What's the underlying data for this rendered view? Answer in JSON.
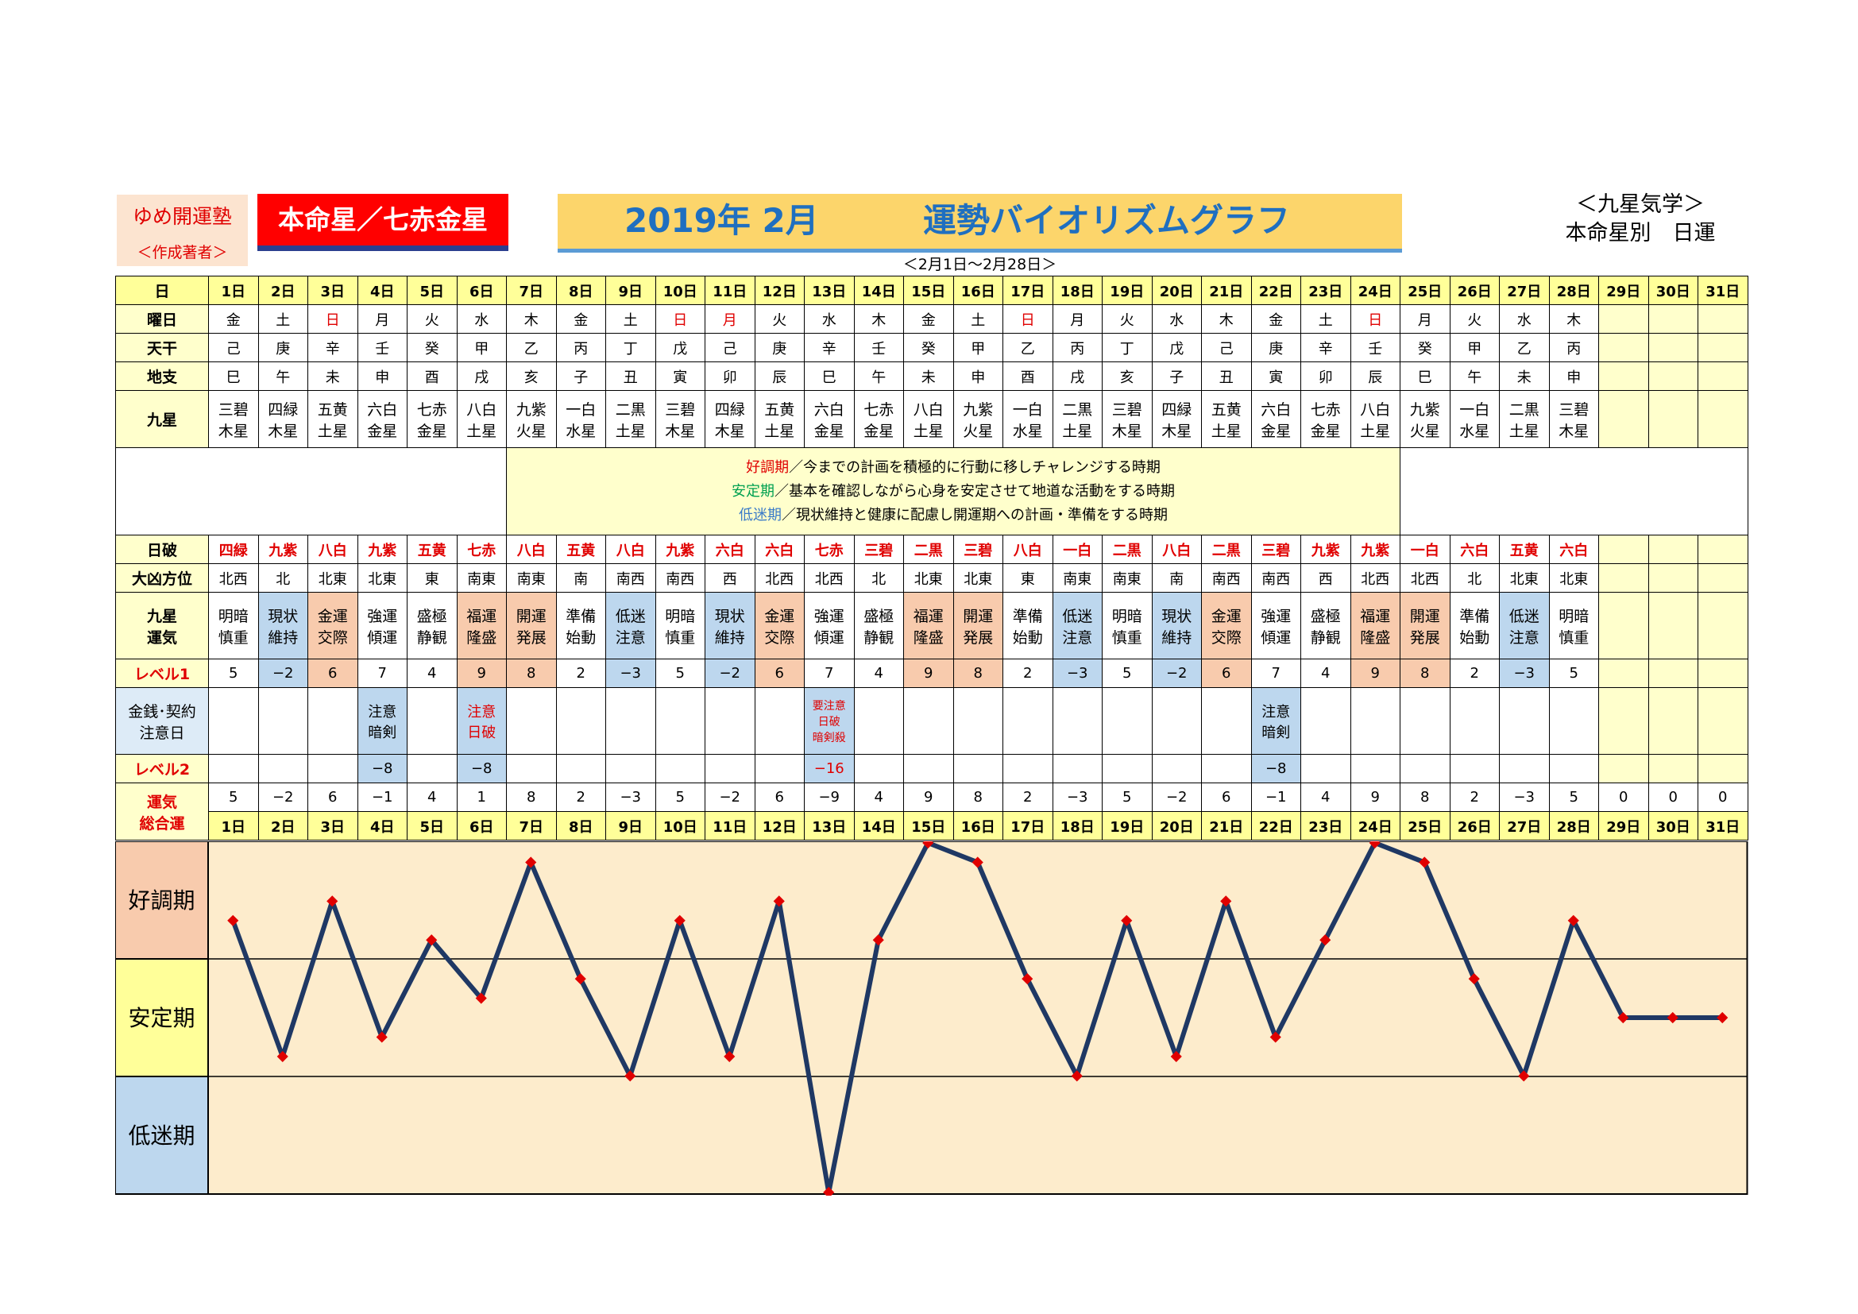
{
  "header": {
    "school": "ゆめ開運塾",
    "author_note": "＜作成著者＞",
    "honmei": "本命星／七赤金星",
    "year_month": "2019年 2月",
    "title": "運勢バイオリズムグラフ",
    "range": "＜2月1日～2月28日＞",
    "right_top": "＜九星気学＞",
    "right_bottom": "本命星別　日運"
  },
  "labels": {
    "day": "日",
    "weekday": "曜日",
    "kan": "天干",
    "shi": "地支",
    "star": "九星",
    "hakai": "日破",
    "kyo": "大凶方位",
    "unki_1": "九星",
    "unki_2": "運気",
    "level1": "レベル1",
    "money_1": "金銭･契約",
    "money_2": "注意日",
    "level2": "レベル2",
    "total_1": "運気",
    "total_2": "総合運"
  },
  "legend": {
    "good": "好調期",
    "good_text": "／今までの計画を積極的に行動に移しチャレンジする時期",
    "stable": "安定期",
    "stable_text": "／基本を確認しながら心身を安定させて地道な活動をする時期",
    "low": "低迷期",
    "low_text": "／現状維持と健康に配慮し開運期への計画・準備をする時期"
  },
  "colors": {
    "line": "#1f3864",
    "marker": "#e00000",
    "plot_bg": "#fdeccc",
    "good": "#f8cbad",
    "stable": "#ffff99",
    "low": "#bdd7ee"
  },
  "days": [
    "1日",
    "2日",
    "3日",
    "4日",
    "5日",
    "6日",
    "7日",
    "8日",
    "9日",
    "10日",
    "11日",
    "12日",
    "13日",
    "14日",
    "15日",
    "16日",
    "17日",
    "18日",
    "19日",
    "20日",
    "21日",
    "22日",
    "23日",
    "24日",
    "25日",
    "26日",
    "27日",
    "28日",
    "29日",
    "30日",
    "31日"
  ],
  "weekdays": [
    "金",
    "土",
    "日",
    "月",
    "火",
    "水",
    "木",
    "金",
    "土",
    "日",
    "月",
    "火",
    "水",
    "木",
    "金",
    "土",
    "日",
    "月",
    "火",
    "水",
    "木",
    "金",
    "土",
    "日",
    "月",
    "火",
    "水",
    "木",
    "",
    "",
    ""
  ],
  "weekday_red": [
    false,
    false,
    true,
    false,
    false,
    false,
    false,
    false,
    false,
    true,
    true,
    false,
    false,
    false,
    false,
    false,
    true,
    false,
    false,
    false,
    false,
    false,
    false,
    true,
    false,
    false,
    false,
    false,
    false,
    false,
    false
  ],
  "kan": [
    "己",
    "庚",
    "辛",
    "壬",
    "癸",
    "甲",
    "乙",
    "丙",
    "丁",
    "戊",
    "己",
    "庚",
    "辛",
    "壬",
    "癸",
    "甲",
    "乙",
    "丙",
    "丁",
    "戊",
    "己",
    "庚",
    "辛",
    "壬",
    "癸",
    "甲",
    "乙",
    "丙",
    "",
    "",
    ""
  ],
  "shi": [
    "巳",
    "午",
    "未",
    "申",
    "酉",
    "戌",
    "亥",
    "子",
    "丑",
    "寅",
    "卯",
    "辰",
    "巳",
    "午",
    "未",
    "申",
    "酉",
    "戌",
    "亥",
    "子",
    "丑",
    "寅",
    "卯",
    "辰",
    "巳",
    "午",
    "未",
    "申",
    "",
    "",
    ""
  ],
  "stars": [
    [
      "三碧",
      "木星"
    ],
    [
      "四緑",
      "木星"
    ],
    [
      "五黄",
      "土星"
    ],
    [
      "六白",
      "金星"
    ],
    [
      "七赤",
      "金星"
    ],
    [
      "八白",
      "土星"
    ],
    [
      "九紫",
      "火星"
    ],
    [
      "一白",
      "水星"
    ],
    [
      "二黒",
      "土星"
    ],
    [
      "三碧",
      "木星"
    ],
    [
      "四緑",
      "木星"
    ],
    [
      "五黄",
      "土星"
    ],
    [
      "六白",
      "金星"
    ],
    [
      "七赤",
      "金星"
    ],
    [
      "八白",
      "土星"
    ],
    [
      "九紫",
      "火星"
    ],
    [
      "一白",
      "水星"
    ],
    [
      "二黒",
      "土星"
    ],
    [
      "三碧",
      "木星"
    ],
    [
      "四緑",
      "木星"
    ],
    [
      "五黄",
      "土星"
    ],
    [
      "六白",
      "金星"
    ],
    [
      "七赤",
      "金星"
    ],
    [
      "八白",
      "土星"
    ],
    [
      "九紫",
      "火星"
    ],
    [
      "一白",
      "水星"
    ],
    [
      "二黒",
      "土星"
    ],
    [
      "三碧",
      "木星"
    ],
    [
      "",
      ""
    ],
    [
      "",
      ""
    ],
    [
      "",
      ""
    ]
  ],
  "hakai": [
    "四緑",
    "九紫",
    "八白",
    "九紫",
    "五黄",
    "七赤",
    "八白",
    "五黄",
    "八白",
    "九紫",
    "六白",
    "六白",
    "七赤",
    "三碧",
    "二黒",
    "三碧",
    "八白",
    "一白",
    "二黒",
    "八白",
    "二黒",
    "三碧",
    "九紫",
    "九紫",
    "一白",
    "六白",
    "五黄",
    "六白",
    "",
    "",
    ""
  ],
  "kyo": [
    "北西",
    "北",
    "北東",
    "北東",
    "東",
    "南東",
    "南東",
    "南",
    "南西",
    "南西",
    "西",
    "北西",
    "北西",
    "北",
    "北東",
    "北東",
    "東",
    "南東",
    "南東",
    "南",
    "南西",
    "南西",
    "西",
    "北西",
    "北西",
    "北",
    "北東",
    "北東",
    "",
    "",
    ""
  ],
  "unki": [
    [
      "明暗",
      "慎重"
    ],
    [
      "現状",
      "維持"
    ],
    [
      "金運",
      "交際"
    ],
    [
      "強運",
      "傾運"
    ],
    [
      "盛極",
      "静観"
    ],
    [
      "福運",
      "隆盛"
    ],
    [
      "開運",
      "発展"
    ],
    [
      "準備",
      "始動"
    ],
    [
      "低迷",
      "注意"
    ],
    [
      "明暗",
      "慎重"
    ],
    [
      "現状",
      "維持"
    ],
    [
      "金運",
      "交際"
    ],
    [
      "強運",
      "傾運"
    ],
    [
      "盛極",
      "静観"
    ],
    [
      "福運",
      "隆盛"
    ],
    [
      "開運",
      "発展"
    ],
    [
      "準備",
      "始動"
    ],
    [
      "低迷",
      "注意"
    ],
    [
      "明暗",
      "慎重"
    ],
    [
      "現状",
      "維持"
    ],
    [
      "金運",
      "交際"
    ],
    [
      "強運",
      "傾運"
    ],
    [
      "盛極",
      "静観"
    ],
    [
      "福運",
      "隆盛"
    ],
    [
      "開運",
      "発展"
    ],
    [
      "準備",
      "始動"
    ],
    [
      "低迷",
      "注意"
    ],
    [
      "明暗",
      "慎重"
    ],
    [
      "",
      ""
    ],
    [
      "",
      ""
    ],
    [
      "",
      ""
    ]
  ],
  "level1": [
    "5",
    "−2",
    "6",
    "7",
    "4",
    "9",
    "8",
    "2",
    "−3",
    "5",
    "−2",
    "6",
    "7",
    "4",
    "9",
    "8",
    "2",
    "−3",
    "5",
    "−2",
    "6",
    "7",
    "4",
    "9",
    "8",
    "2",
    "−3",
    "5",
    "",
    "",
    ""
  ],
  "money": [
    "",
    "",
    "",
    [
      "注意",
      "暗剣"
    ],
    "",
    [
      "注意",
      "日破"
    ],
    "",
    "",
    "",
    "",
    "",
    "",
    [
      "要注意",
      "日破",
      "暗剣殺"
    ],
    "",
    "",
    "",
    "",
    "",
    "",
    "",
    "",
    [
      "注意",
      "暗剣"
    ],
    "",
    "",
    "",
    "",
    "",
    "",
    "",
    "",
    ""
  ],
  "level2": [
    "",
    "",
    "",
    "−8",
    "",
    "−8",
    "",
    "",
    "",
    "",
    "",
    "",
    "−16",
    "",
    "",
    "",
    "",
    "",
    "",
    "",
    "",
    "−8",
    "",
    "",
    "",
    "",
    "",
    "",
    "",
    "",
    ""
  ],
  "total": [
    "5",
    "−2",
    "6",
    "−1",
    "4",
    "1",
    "8",
    "2",
    "−3",
    "5",
    "−2",
    "6",
    "−9",
    "4",
    "9",
    "8",
    "2",
    "−3",
    "5",
    "−2",
    "6",
    "−1",
    "4",
    "9",
    "8",
    "2",
    "−3",
    "5",
    "0",
    "0",
    "0"
  ],
  "chart_data": {
    "type": "line",
    "x": [
      "1日",
      "2日",
      "3日",
      "4日",
      "5日",
      "6日",
      "7日",
      "8日",
      "9日",
      "10日",
      "11日",
      "12日",
      "13日",
      "14日",
      "15日",
      "16日",
      "17日",
      "18日",
      "19日",
      "20日",
      "21日",
      "22日",
      "23日",
      "24日",
      "25日",
      "26日",
      "27日",
      "28日",
      "29日",
      "30日",
      "31日"
    ],
    "values": [
      5,
      -2,
      6,
      -1,
      4,
      1,
      8,
      2,
      -3,
      5,
      -2,
      6,
      -9,
      4,
      9,
      8,
      2,
      -3,
      5,
      -2,
      6,
      -1,
      4,
      9,
      8,
      2,
      -3,
      5,
      0,
      0,
      0
    ],
    "ylim": [
      -9,
      9
    ],
    "bands": [
      "好調期",
      "安定期",
      "低迷期"
    ],
    "grid": false
  }
}
